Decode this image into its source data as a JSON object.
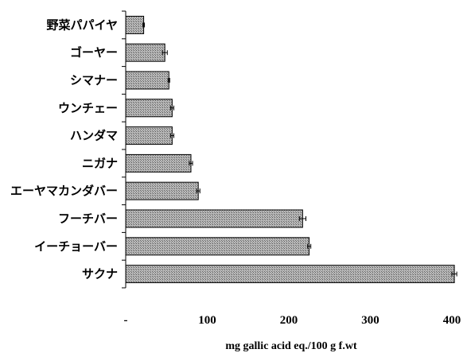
{
  "chart_data": {
    "type": "bar",
    "orientation": "horizontal",
    "categories": [
      "野菜パパイヤ",
      "ゴーヤー",
      "シマナー",
      "ウンチェー",
      "ハンダマ",
      "ニガナ",
      "エーヤマカンダバー",
      "フーチバー",
      "イーチョーバー",
      "サクナ"
    ],
    "values": [
      22,
      48,
      53,
      57,
      57,
      80,
      89,
      217,
      225,
      403
    ],
    "errors": [
      1,
      3,
      1,
      2,
      2,
      2,
      2,
      4,
      2,
      3
    ],
    "xlabel": "mg gallic acid eq./100 g f.wt",
    "xlim": [
      0,
      400
    ],
    "xticks": [
      "-",
      "100",
      "200",
      "300",
      "400"
    ],
    "bar_fill": "crosshatch-gray",
    "grid": false
  }
}
